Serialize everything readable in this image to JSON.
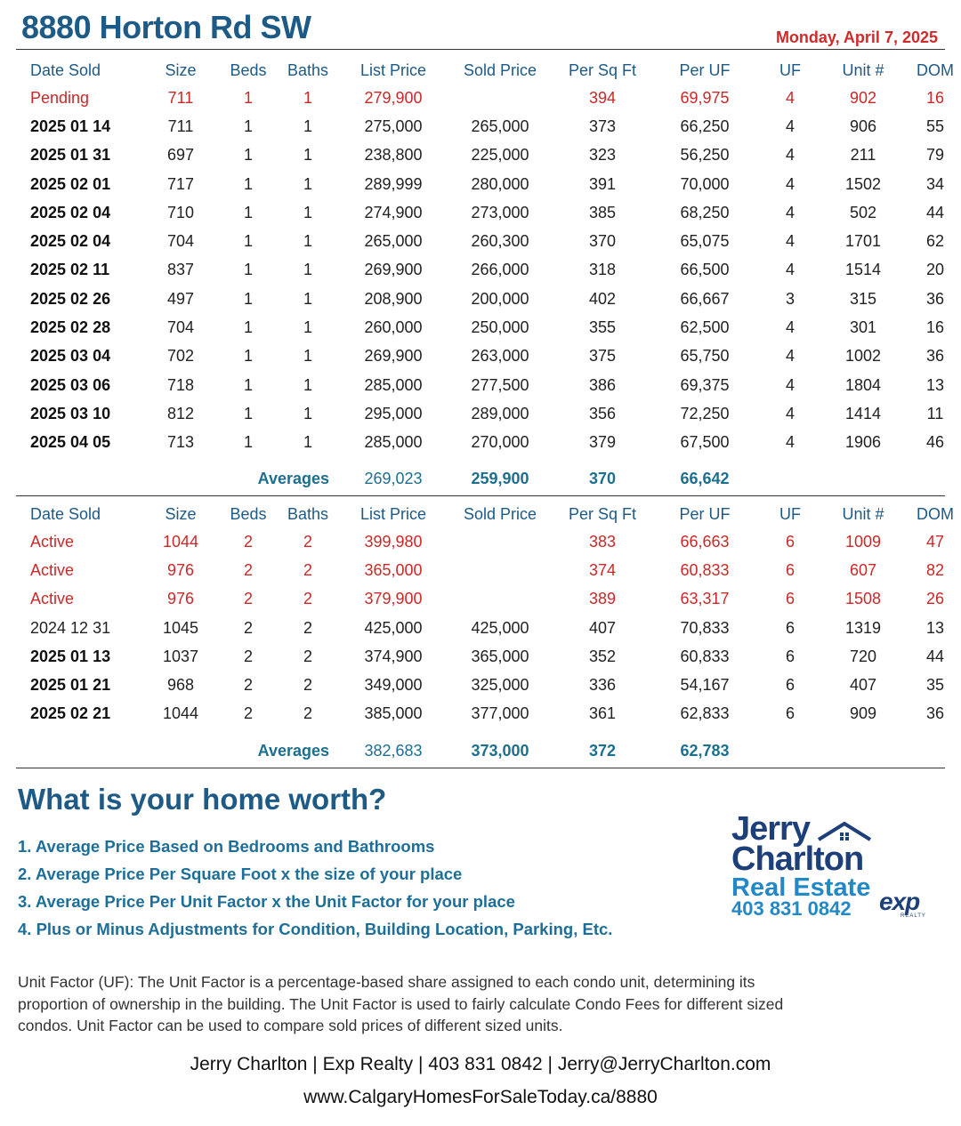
{
  "header": {
    "title": "8880 Horton Rd SW",
    "date": "Monday, April 7, 2025"
  },
  "columns": [
    "Date Sold",
    "Size",
    "Beds",
    "Baths",
    "List Price",
    "Sold Price",
    "Per Sq Ft",
    "Per UF",
    "UF",
    "Unit #",
    "DOM"
  ],
  "one_bed": {
    "rows": [
      {
        "date": "Pending",
        "size": "711",
        "beds": "1",
        "baths": "1",
        "list": "279,900",
        "sold": "",
        "psf": "394",
        "puf": "69,975",
        "uf": "4",
        "unit": "902",
        "dom": "16",
        "style": "red"
      },
      {
        "date": "2025 01 14",
        "size": "711",
        "beds": "1",
        "baths": "1",
        "list": "275,000",
        "sold": "265,000",
        "psf": "373",
        "puf": "66,250",
        "uf": "4",
        "unit": "906",
        "dom": "55",
        "style": "bold"
      },
      {
        "date": "2025 01 31",
        "size": "697",
        "beds": "1",
        "baths": "1",
        "list": "238,800",
        "sold": "225,000",
        "psf": "323",
        "puf": "56,250",
        "uf": "4",
        "unit": "211",
        "dom": "79",
        "style": "bold"
      },
      {
        "date": "2025 02 01",
        "size": "717",
        "beds": "1",
        "baths": "1",
        "list": "289,999",
        "sold": "280,000",
        "psf": "391",
        "puf": "70,000",
        "uf": "4",
        "unit": "1502",
        "dom": "34",
        "style": "bold"
      },
      {
        "date": "2025 02 04",
        "size": "710",
        "beds": "1",
        "baths": "1",
        "list": "274,900",
        "sold": "273,000",
        "psf": "385",
        "puf": "68,250",
        "uf": "4",
        "unit": "502",
        "dom": "44",
        "style": "bold"
      },
      {
        "date": "2025 02 04",
        "size": "704",
        "beds": "1",
        "baths": "1",
        "list": "265,000",
        "sold": "260,300",
        "psf": "370",
        "puf": "65,075",
        "uf": "4",
        "unit": "1701",
        "dom": "62",
        "style": "bold"
      },
      {
        "date": "2025 02 11",
        "size": "837",
        "beds": "1",
        "baths": "1",
        "list": "269,900",
        "sold": "266,000",
        "psf": "318",
        "puf": "66,500",
        "uf": "4",
        "unit": "1514",
        "dom": "20",
        "style": "bold"
      },
      {
        "date": "2025 02 26",
        "size": "497",
        "beds": "1",
        "baths": "1",
        "list": "208,900",
        "sold": "200,000",
        "psf": "402",
        "puf": "66,667",
        "uf": "3",
        "unit": "315",
        "dom": "36",
        "style": "bold"
      },
      {
        "date": "2025 02 28",
        "size": "704",
        "beds": "1",
        "baths": "1",
        "list": "260,000",
        "sold": "250,000",
        "psf": "355",
        "puf": "62,500",
        "uf": "4",
        "unit": "301",
        "dom": "16",
        "style": "bold"
      },
      {
        "date": "2025 03 04",
        "size": "702",
        "beds": "1",
        "baths": "1",
        "list": "269,900",
        "sold": "263,000",
        "psf": "375",
        "puf": "65,750",
        "uf": "4",
        "unit": "1002",
        "dom": "36",
        "style": "bold"
      },
      {
        "date": "2025 03 06",
        "size": "718",
        "beds": "1",
        "baths": "1",
        "list": "285,000",
        "sold": "277,500",
        "psf": "386",
        "puf": "69,375",
        "uf": "4",
        "unit": "1804",
        "dom": "13",
        "style": "bold"
      },
      {
        "date": "2025 03 10",
        "size": "812",
        "beds": "1",
        "baths": "1",
        "list": "295,000",
        "sold": "289,000",
        "psf": "356",
        "puf": "72,250",
        "uf": "4",
        "unit": "1414",
        "dom": "11",
        "style": "bold"
      },
      {
        "date": "2025 04 05",
        "size": "713",
        "beds": "1",
        "baths": "1",
        "list": "285,000",
        "sold": "270,000",
        "psf": "379",
        "puf": "67,500",
        "uf": "4",
        "unit": "1906",
        "dom": "46",
        "style": "bold"
      }
    ],
    "averages": {
      "label": "Averages",
      "list": "269,023",
      "sold": "259,900",
      "psf": "370",
      "puf": "66,642"
    }
  },
  "two_bed": {
    "rows": [
      {
        "date": "Active",
        "size": "1044",
        "beds": "2",
        "baths": "2",
        "list": "399,980",
        "sold": "",
        "psf": "383",
        "puf": "66,663",
        "uf": "6",
        "unit": "1009",
        "dom": "47",
        "style": "red"
      },
      {
        "date": "Active",
        "size": "976",
        "beds": "2",
        "baths": "2",
        "list": "365,000",
        "sold": "",
        "psf": "374",
        "puf": "60,833",
        "uf": "6",
        "unit": "607",
        "dom": "82",
        "style": "red"
      },
      {
        "date": "Active",
        "size": "976",
        "beds": "2",
        "baths": "2",
        "list": "379,900",
        "sold": "",
        "psf": "389",
        "puf": "63,317",
        "uf": "6",
        "unit": "1508",
        "dom": "26",
        "style": "red"
      },
      {
        "date": "2024 12 31",
        "size": "1045",
        "beds": "2",
        "baths": "2",
        "list": "425,000",
        "sold": "425,000",
        "psf": "407",
        "puf": "70,833",
        "uf": "6",
        "unit": "1319",
        "dom": "13",
        "style": "plain"
      },
      {
        "date": "2025 01 13",
        "size": "1037",
        "beds": "2",
        "baths": "2",
        "list": "374,900",
        "sold": "365,000",
        "psf": "352",
        "puf": "60,833",
        "uf": "6",
        "unit": "720",
        "dom": "44",
        "style": "bold"
      },
      {
        "date": "2025 01 21",
        "size": "968",
        "beds": "2",
        "baths": "2",
        "list": "349,000",
        "sold": "325,000",
        "psf": "336",
        "puf": "54,167",
        "uf": "6",
        "unit": "407",
        "dom": "35",
        "style": "bold"
      },
      {
        "date": "2025 02 21",
        "size": "1044",
        "beds": "2",
        "baths": "2",
        "list": "385,000",
        "sold": "377,000",
        "psf": "361",
        "puf": "62,833",
        "uf": "6",
        "unit": "909",
        "dom": "36",
        "style": "bold"
      }
    ],
    "averages": {
      "label": "Averages",
      "list": "382,683",
      "sold": "373,000",
      "psf": "372",
      "puf": "62,783"
    }
  },
  "worth": {
    "heading": "What is your home worth?",
    "steps": [
      "1. Average Price Based on Bedrooms and Bathrooms",
      "2. Average Price Per Square Foot x the size of your place",
      "3. Average Price Per Unit Factor x the Unit Factor for your place",
      "4. Plus or Minus Adjustments for Condition, Building Location, Parking, Etc."
    ]
  },
  "logo": {
    "line1": "Jerry",
    "line2": "Charlton",
    "line3": "Real Estate",
    "phone": "403 831 0842",
    "brand": "exp",
    "brand_sub": "REALTY",
    "icon": "house-roof-icon"
  },
  "uf_note": "Unit Factor (UF): The Unit Factor is a percentage-based share assigned to each condo unit, determining its proportion of ownership in the building. The Unit Factor is used to fairly calculate Condo Fees for different sized condos. Unit Factor can be used to compare sold prices of different sized units.",
  "footer": {
    "contact": "Jerry Charlton | Exp Realty | 403 831 0842 | Jerry@JerryCharlton.com",
    "website": "www.CalgaryHomesForSaleToday.ca/8880"
  },
  "colors": {
    "title": "#1d5a86",
    "accent_red": "#cc2828",
    "link_blue": "#1d6f9a"
  }
}
